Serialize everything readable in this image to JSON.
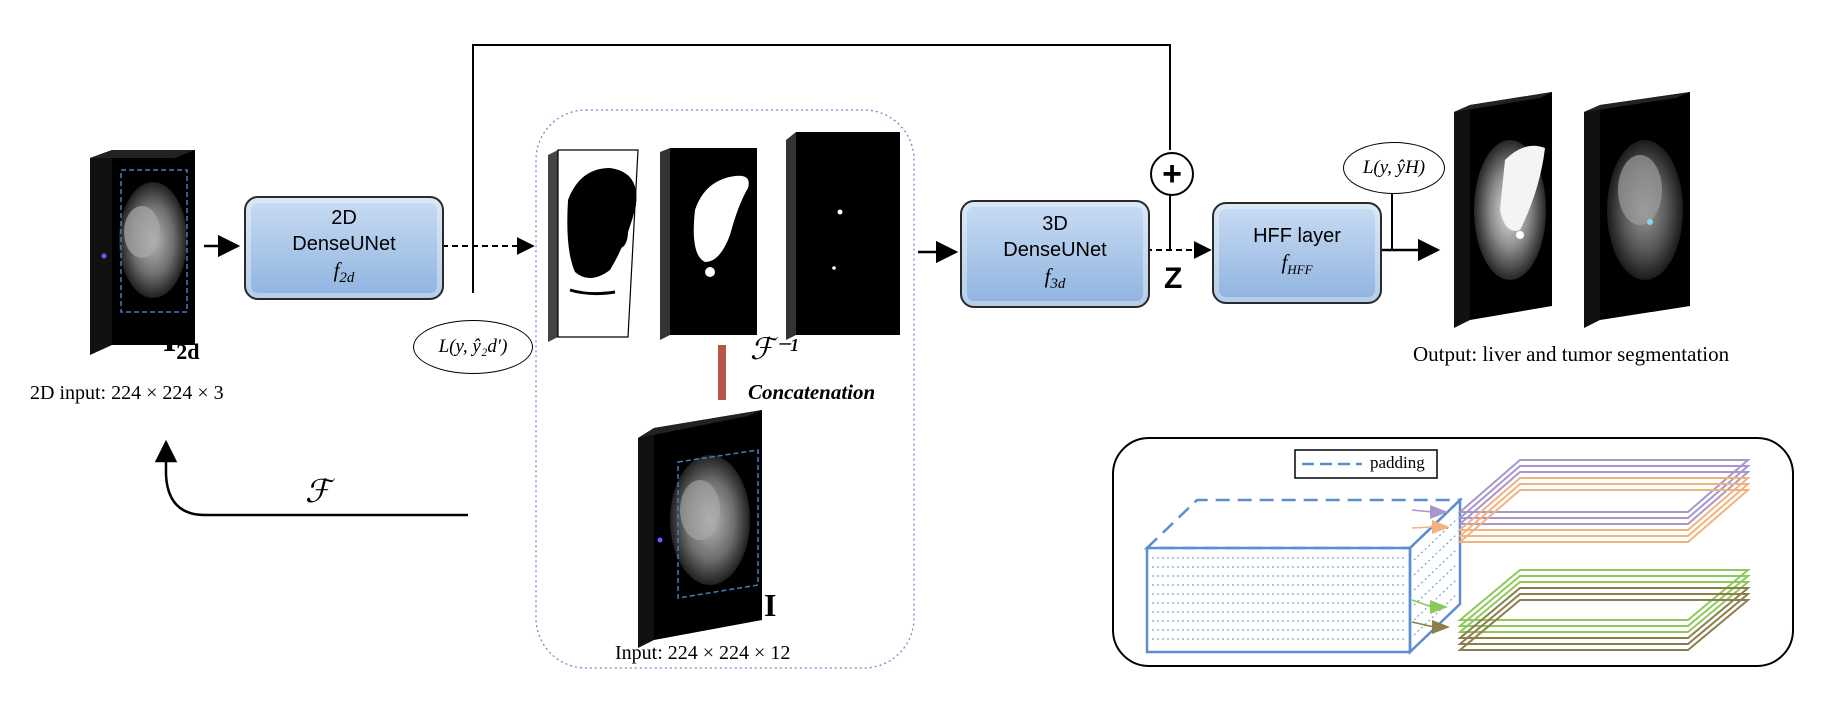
{
  "input_2d": {
    "symbol": "I",
    "subscript": "2d",
    "caption": "2D input: 224 × 224 × 3"
  },
  "dense2d": {
    "line1": "2D",
    "line2": "DenseUNet",
    "func": "f",
    "func_sub": "2d"
  },
  "loss_2d": {
    "text": "L(y, ŷ₂d′)"
  },
  "transform": {
    "forward": "ℱ",
    "inverse": "ℱ⁻¹",
    "concat": "Concatenation"
  },
  "volume_input": {
    "symbol": "I",
    "caption": "Input: 224 × 224 × 12"
  },
  "dense3d": {
    "line1": "3D",
    "line2": "DenseUNet",
    "func": "f",
    "func_sub": "3d"
  },
  "fusion": {
    "sum_symbol": "+",
    "z_label": "Z"
  },
  "hff": {
    "line1": "HFF layer",
    "func": "f",
    "func_sub": "HFF"
  },
  "loss_h": {
    "text": "L(y, ŷH)"
  },
  "output": {
    "caption": "Output: liver and tumor segmentation"
  },
  "inset": {
    "legend": "padding"
  },
  "colors": {
    "box_top": "#c9dcf3",
    "box_bottom": "#8fb3df",
    "concat_bar": "#b5554a",
    "inset_blue": "#5b8ed1",
    "purple": "#a796c9",
    "orange": "#f2b27e",
    "green": "#8dc95a",
    "olive": "#8b7e4b"
  },
  "icons": [
    "ct-slice-stack",
    "mask-slice",
    "arrow",
    "sum-circle"
  ]
}
